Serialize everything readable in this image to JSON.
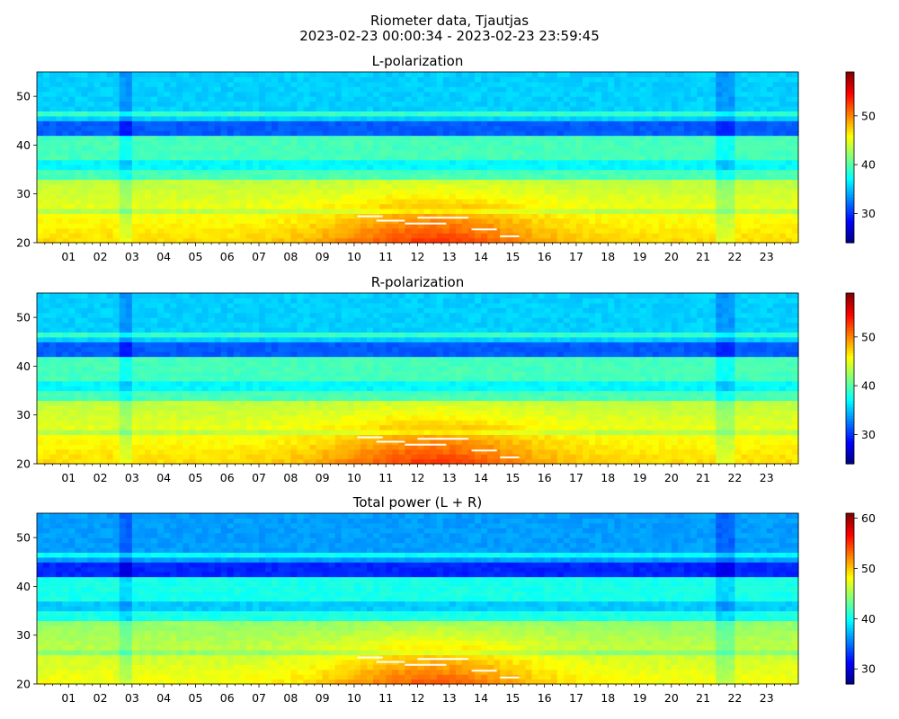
{
  "figure": {
    "title_line1": "Riometer data, Tjautjas",
    "title_line2": "2023-02-23 00:00:34 - 2023-02-23 23:59:45"
  },
  "chart_data": [
    {
      "type": "heatmap",
      "title": "L-polarization",
      "x_ticks": [
        "01",
        "02",
        "03",
        "04",
        "05",
        "06",
        "07",
        "08",
        "09",
        "10",
        "11",
        "12",
        "13",
        "14",
        "15",
        "16",
        "17",
        "18",
        "19",
        "20",
        "21",
        "22",
        "23"
      ],
      "xlim": [
        0,
        24
      ],
      "y_ticks": [
        20,
        30,
        40,
        50
      ],
      "ylim": [
        20,
        55
      ],
      "colorbar": {
        "range": [
          24,
          59
        ],
        "ticks": [
          30,
          40,
          50
        ],
        "colormap": "jet"
      },
      "grid": false
    },
    {
      "type": "heatmap",
      "title": "R-polarization",
      "x_ticks": [
        "01",
        "02",
        "03",
        "04",
        "05",
        "06",
        "07",
        "08",
        "09",
        "10",
        "11",
        "12",
        "13",
        "14",
        "15",
        "16",
        "17",
        "18",
        "19",
        "20",
        "21",
        "22",
        "23"
      ],
      "xlim": [
        0,
        24
      ],
      "y_ticks": [
        20,
        30,
        40,
        50
      ],
      "ylim": [
        20,
        55
      ],
      "colorbar": {
        "range": [
          24,
          59
        ],
        "ticks": [
          30,
          40,
          50
        ],
        "colormap": "jet"
      },
      "grid": false
    },
    {
      "type": "heatmap",
      "title": "Total power (L + R)",
      "x_ticks": [
        "01",
        "02",
        "03",
        "04",
        "05",
        "06",
        "07",
        "08",
        "09",
        "10",
        "11",
        "12",
        "13",
        "14",
        "15",
        "16",
        "17",
        "18",
        "19",
        "20",
        "21",
        "22",
        "23"
      ],
      "xlim": [
        0,
        24
      ],
      "y_ticks": [
        20,
        30,
        40,
        50
      ],
      "ylim": [
        20,
        55
      ],
      "colorbar": {
        "range": [
          27,
          61
        ],
        "ticks": [
          30,
          40,
          50,
          60
        ],
        "colormap": "jet"
      },
      "grid": false
    }
  ]
}
